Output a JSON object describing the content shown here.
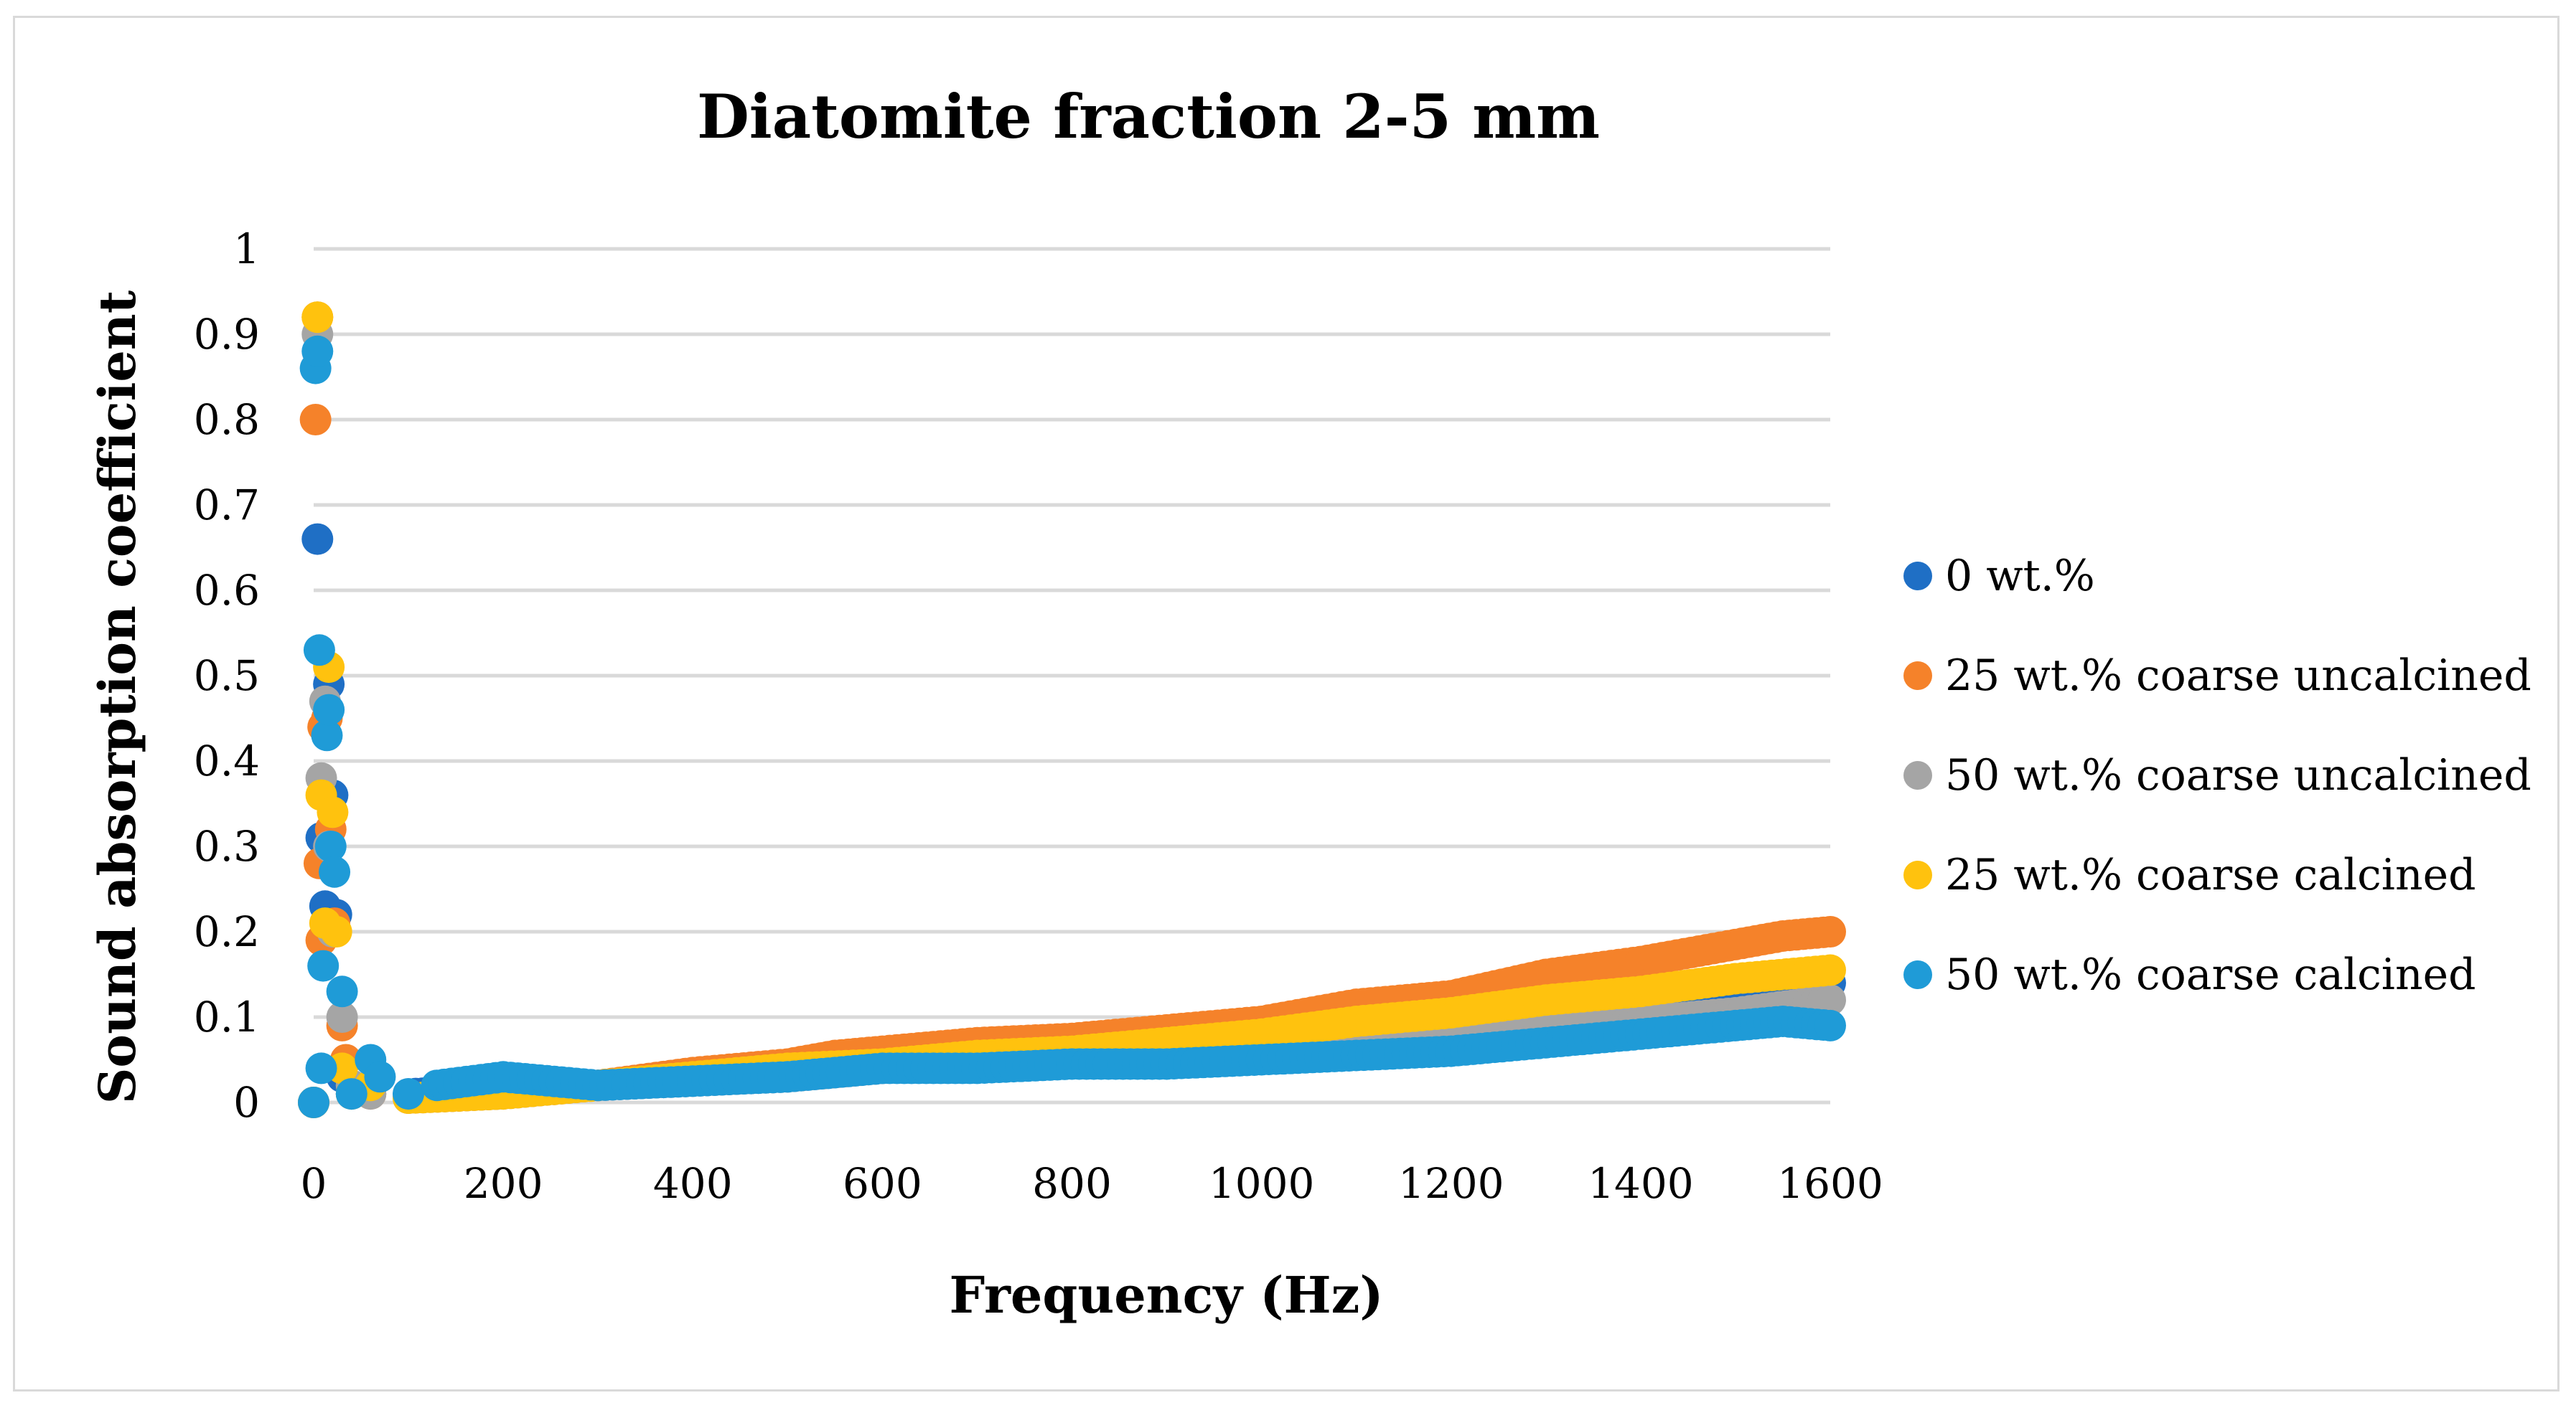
{
  "chart_data": {
    "type": "scatter",
    "title": "Diatomite fraction 2-5 mm",
    "xlabel": "Frequency (Hz)",
    "ylabel": "Sound absorption coefficient",
    "xlim": [
      0,
      1600
    ],
    "ylim": [
      0,
      1
    ],
    "x_ticks": [
      "0",
      "200",
      "400",
      "600",
      "800",
      "1000",
      "1200",
      "1400",
      "1600"
    ],
    "y_ticks": [
      "0",
      "0.1",
      "0.2",
      "0.3",
      "0.4",
      "0.5",
      "0.6",
      "0.7",
      "0.8",
      "0.9",
      "1"
    ],
    "grid": true,
    "legend_position": "right",
    "series": [
      {
        "name": "0 wt.%",
        "color": "#1f6fc5",
        "x": [
          0,
          4,
          8,
          12,
          16,
          20,
          24,
          30,
          40,
          60,
          100,
          200,
          300,
          400,
          500,
          550,
          600,
          700,
          800,
          900,
          1000,
          1100,
          1200,
          1300,
          1400,
          1500,
          1600
        ],
        "y": [
          0.0,
          0.66,
          0.31,
          0.23,
          0.49,
          0.36,
          0.22,
          0.03,
          0.01,
          0.02,
          0.01,
          0.015,
          0.02,
          0.025,
          0.03,
          0.035,
          0.04,
          0.045,
          0.05,
          0.055,
          0.06,
          0.065,
          0.07,
          0.085,
          0.1,
          0.115,
          0.14
        ]
      },
      {
        "name": "25 wt.% coarse uncalcined",
        "color": "#f5822a",
        "x": [
          0,
          2,
          4,
          6,
          8,
          10,
          14,
          18,
          22,
          30,
          34,
          40,
          60,
          100,
          200,
          300,
          400,
          500,
          550,
          600,
          700,
          800,
          900,
          1000,
          1100,
          1200,
          1300,
          1400,
          1500,
          1550,
          1600
        ],
        "y": [
          0.0,
          0.8,
          0.92,
          0.28,
          0.19,
          0.44,
          0.45,
          0.32,
          0.21,
          0.09,
          0.05,
          0.02,
          0.01,
          0.005,
          0.01,
          0.02,
          0.035,
          0.045,
          0.055,
          0.06,
          0.07,
          0.075,
          0.085,
          0.095,
          0.115,
          0.125,
          0.15,
          0.165,
          0.185,
          0.195,
          0.2
        ]
      },
      {
        "name": "50 wt.% coarse uncalcined",
        "color": "#a5a5a5",
        "x": [
          0,
          4,
          8,
          12,
          16,
          20,
          30,
          40,
          60,
          100,
          200,
          300,
          400,
          500,
          600,
          700,
          800,
          900,
          1000,
          1100,
          1200,
          1300,
          1400,
          1500,
          1600
        ],
        "y": [
          0.0,
          0.9,
          0.38,
          0.47,
          0.3,
          0.2,
          0.1,
          0.02,
          0.01,
          0.005,
          0.01,
          0.02,
          0.025,
          0.03,
          0.04,
          0.045,
          0.05,
          0.055,
          0.06,
          0.07,
          0.075,
          0.085,
          0.095,
          0.105,
          0.12
        ]
      },
      {
        "name": "25 wt.% coarse calcined",
        "color": "#ffc20e",
        "x": [
          0,
          4,
          8,
          12,
          16,
          20,
          24,
          30,
          40,
          60,
          100,
          200,
          300,
          400,
          500,
          600,
          700,
          800,
          900,
          1000,
          1100,
          1200,
          1300,
          1400,
          1500,
          1600
        ],
        "y": [
          0.0,
          0.92,
          0.36,
          0.21,
          0.51,
          0.34,
          0.2,
          0.04,
          0.01,
          0.02,
          0.005,
          0.01,
          0.02,
          0.03,
          0.04,
          0.045,
          0.055,
          0.06,
          0.07,
          0.08,
          0.095,
          0.105,
          0.12,
          0.13,
          0.145,
          0.155
        ]
      },
      {
        "name": "50 wt.% coarse calcined",
        "color": "#1f9bd7",
        "x": [
          0,
          2,
          4,
          6,
          8,
          10,
          14,
          16,
          18,
          22,
          30,
          40,
          60,
          70,
          100,
          130,
          200,
          300,
          400,
          500,
          550,
          600,
          700,
          800,
          900,
          1000,
          1100,
          1200,
          1300,
          1400,
          1500,
          1550,
          1600
        ],
        "y": [
          0.0,
          0.86,
          0.88,
          0.53,
          0.04,
          0.16,
          0.43,
          0.46,
          0.3,
          0.27,
          0.13,
          0.01,
          0.05,
          0.03,
          0.01,
          0.02,
          0.03,
          0.02,
          0.025,
          0.03,
          0.035,
          0.04,
          0.04,
          0.045,
          0.045,
          0.05,
          0.055,
          0.06,
          0.07,
          0.08,
          0.09,
          0.095,
          0.09
        ]
      }
    ]
  }
}
